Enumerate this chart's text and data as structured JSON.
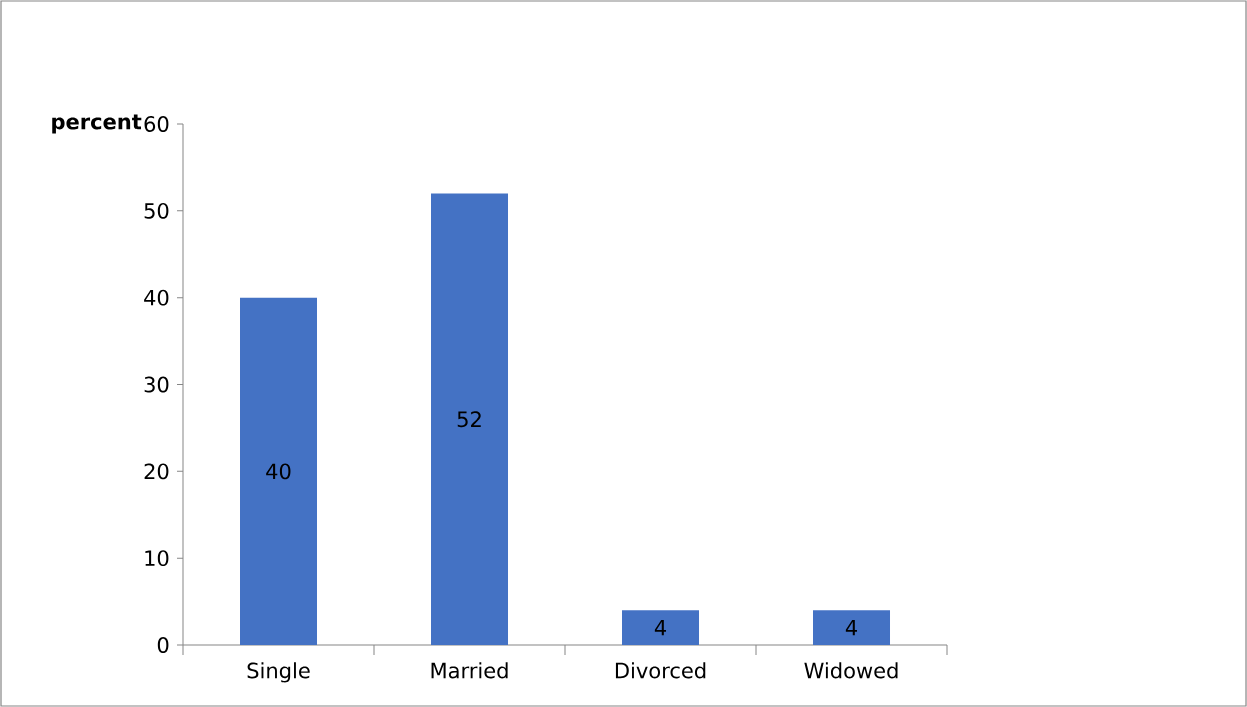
{
  "chart_data": {
    "type": "bar",
    "ylabel": "percent",
    "categories": [
      "Single",
      "Married",
      "Divorced",
      "Widowed"
    ],
    "values": [
      40,
      52,
      4,
      4
    ],
    "color": "#4472c4",
    "ylim": [
      0,
      60
    ],
    "yticks": [
      0,
      10,
      20,
      30,
      40,
      50,
      60
    ],
    "data_labels": true
  }
}
